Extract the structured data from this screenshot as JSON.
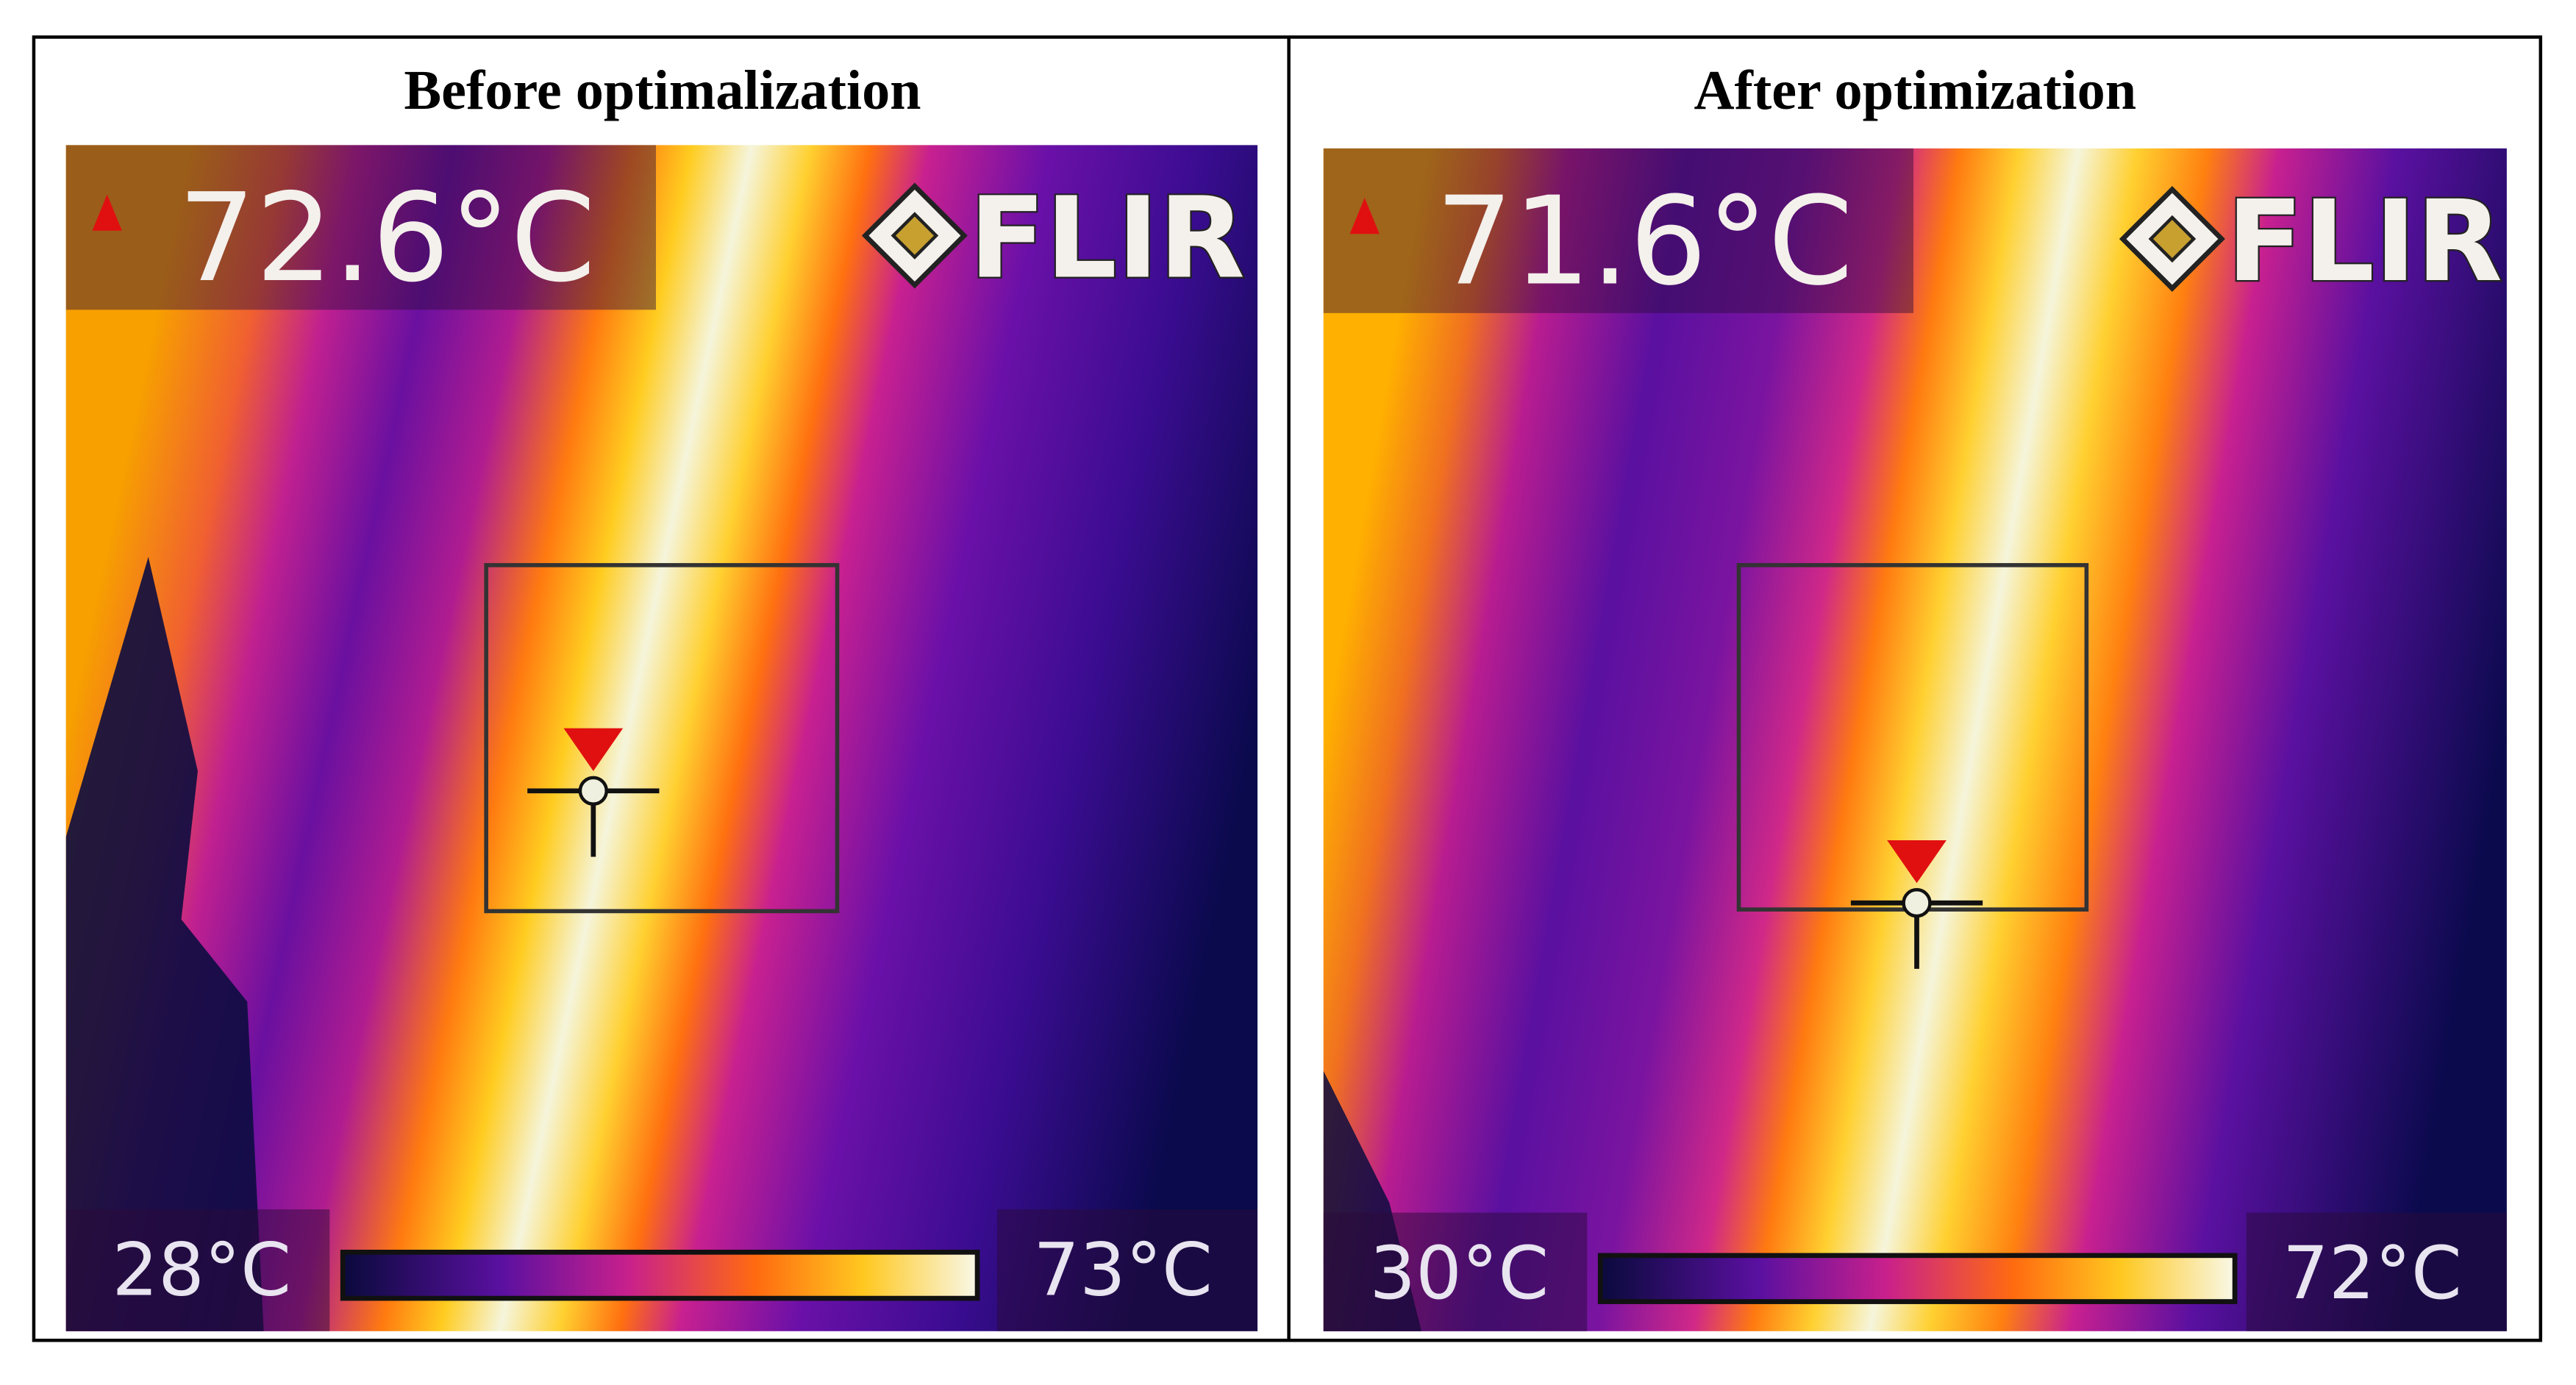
{
  "figure": {
    "panels": [
      {
        "title": "Before optimalization",
        "max_temperature": "72.6°C",
        "brand": "FLIR",
        "scale_min": "28°C",
        "scale_max": "73°C"
      },
      {
        "title": "After optimization",
        "max_temperature": "71.6°C",
        "brand": "FLIR",
        "scale_min": "30°C",
        "scale_max": "72°C"
      }
    ]
  }
}
